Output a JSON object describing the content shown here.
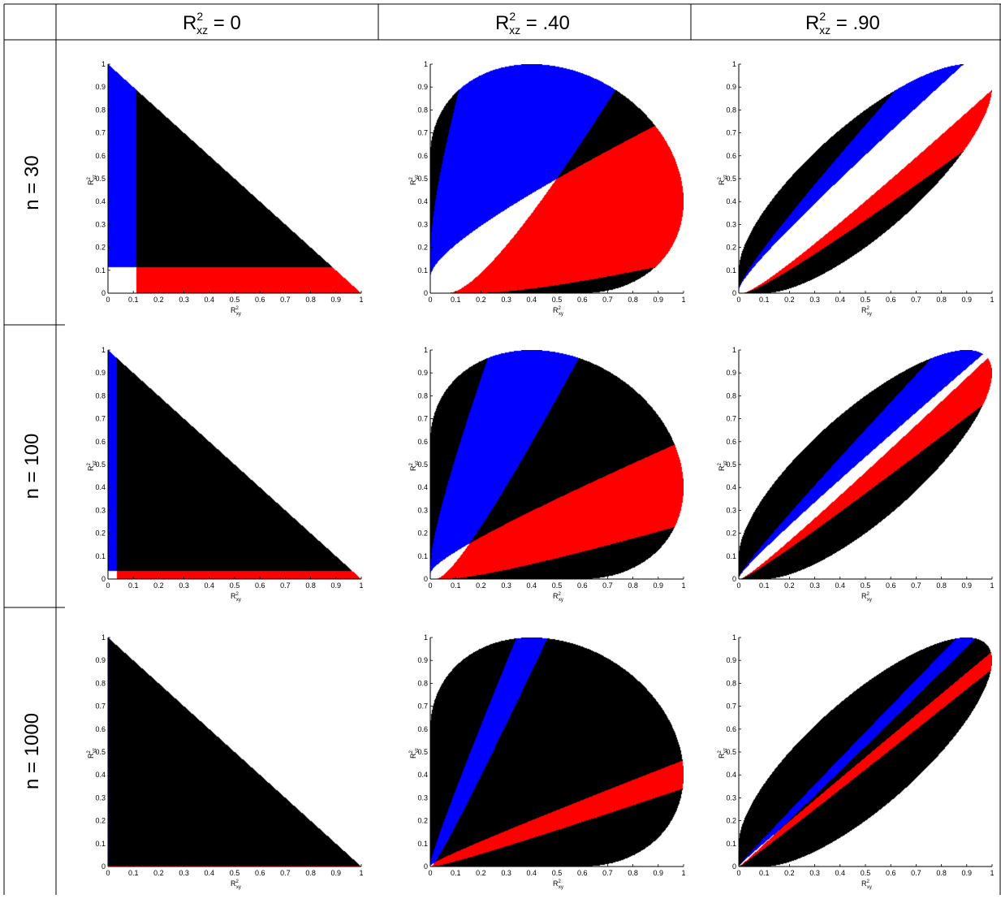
{
  "table": {
    "column_headers": [
      {
        "base": "R",
        "sup": "2",
        "sub": "xz",
        "rest": " = 0"
      },
      {
        "base": "R",
        "sup": "2",
        "sub": "xz",
        "rest": " = .40"
      },
      {
        "base": "R",
        "sup": "2",
        "sub": "xz",
        "rest": " = .90"
      }
    ],
    "row_headers": [
      "n = 30",
      "n = 100",
      "n = 1000"
    ]
  },
  "colors": {
    "feasible": "#000000",
    "x_region": "#ff0000",
    "z_region": "#0000ff",
    "neither": "#ffffff"
  },
  "chart_data": {
    "type": "region-map",
    "xlabel": {
      "base": "R",
      "sup": "2",
      "sub": "xy"
    },
    "ylabel": {
      "base": "R",
      "sup": "2",
      "sub": "yz"
    },
    "xlim": [
      0,
      1
    ],
    "ylim": [
      0,
      1
    ],
    "ticks": [
      "0",
      "0.1",
      "0.2",
      "0.3",
      "0.4",
      "0.5",
      "0.6",
      "0.7",
      "0.8",
      "0.9",
      "1"
    ],
    "tick_values": [
      0,
      0.1,
      0.2,
      0.3,
      0.4,
      0.5,
      0.6,
      0.7,
      0.8,
      0.9,
      1
    ],
    "r2xz": [
      0,
      0.4,
      0.9
    ],
    "n": [
      30,
      100,
      1000
    ],
    "panels": [
      {
        "r2xz": 0,
        "n": 30,
        "threshold": 0.112
      },
      {
        "r2xz": 0.4,
        "n": 30,
        "threshold": 0.112
      },
      {
        "r2xz": 0.9,
        "n": 30,
        "threshold": 0.112
      },
      {
        "r2xz": 0,
        "n": 100,
        "threshold": 0.035
      },
      {
        "r2xz": 0.4,
        "n": 100,
        "threshold": 0.035
      },
      {
        "r2xz": 0.9,
        "n": 100,
        "threshold": 0.035
      },
      {
        "r2xz": 0,
        "n": 1000,
        "threshold": 0.004
      },
      {
        "r2xz": 0.4,
        "n": 1000,
        "threshold": 0.004
      },
      {
        "r2xz": 0.9,
        "n": 1000,
        "threshold": 0.004
      }
    ]
  }
}
